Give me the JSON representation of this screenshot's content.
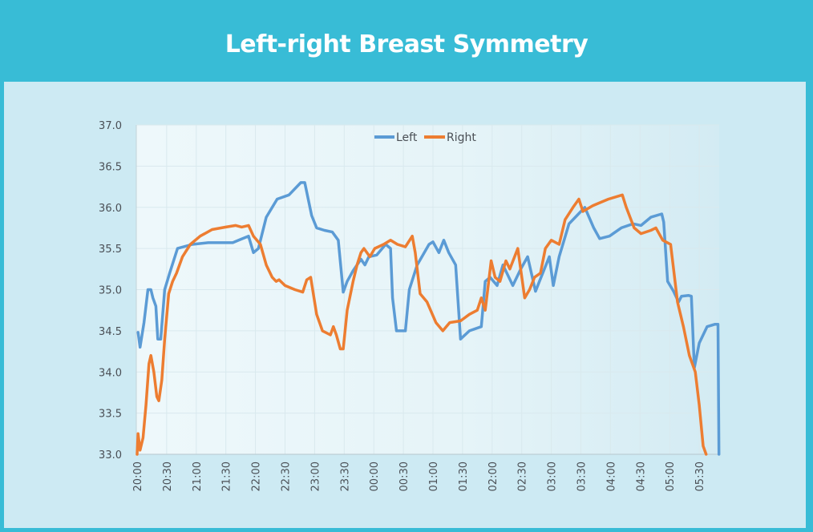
{
  "header": {
    "title": "Left-right Breast Symmetry"
  },
  "colors": {
    "frame": "#38bcd6",
    "panel": "#cdeaf3",
    "plot_bg": "#eaf6f9",
    "grid": "#d9e9ee",
    "left": "#5b9bd5",
    "right": "#ed7d31"
  },
  "chart_data": {
    "type": "line",
    "title": "Left-right Breast Symmetry",
    "xlabel": "",
    "ylabel": "",
    "x_unit": "minutes since 20:00",
    "xlim": [
      0,
      590
    ],
    "ylim": [
      33.0,
      37.0
    ],
    "y_ticks": [
      "33.0",
      "33.5",
      "34.0",
      "34.5",
      "35.0",
      "35.5",
      "36.0",
      "36.5",
      "37.0"
    ],
    "x_ticks": [
      "20:00",
      "20:30",
      "21:00",
      "21:30",
      "22:00",
      "22:30",
      "23:00",
      "23:30",
      "00:00",
      "00:30",
      "01:00",
      "01:30",
      "02:00",
      "02:30",
      "03:00",
      "03:30",
      "04:00",
      "04:30",
      "05:00",
      "05:30"
    ],
    "grid": true,
    "legend": {
      "position": "top-center",
      "entries": [
        "Left",
        "Right"
      ]
    },
    "series": [
      {
        "name": "Left",
        "color": "#5b9bd5",
        "points": [
          [
            1,
            34.48
          ],
          [
            3,
            34.3
          ],
          [
            7,
            34.6
          ],
          [
            11,
            35.0
          ],
          [
            14,
            35.0
          ],
          [
            16,
            34.9
          ],
          [
            19,
            34.8
          ],
          [
            21,
            34.4
          ],
          [
            24,
            34.4
          ],
          [
            28,
            35.0
          ],
          [
            33,
            35.2
          ],
          [
            41,
            35.5
          ],
          [
            56,
            35.55
          ],
          [
            72,
            35.57
          ],
          [
            97,
            35.57
          ],
          [
            103,
            35.6
          ],
          [
            113,
            35.65
          ],
          [
            118,
            35.45
          ],
          [
            123,
            35.5
          ],
          [
            131,
            35.88
          ],
          [
            142,
            36.1
          ],
          [
            154,
            36.15
          ],
          [
            166,
            36.3
          ],
          [
            170,
            36.3
          ],
          [
            177,
            35.9
          ],
          [
            182,
            35.75
          ],
          [
            190,
            35.72
          ],
          [
            198,
            35.7
          ],
          [
            204,
            35.6
          ],
          [
            209,
            34.97
          ],
          [
            213,
            35.1
          ],
          [
            219,
            35.23
          ],
          [
            227,
            35.37
          ],
          [
            231,
            35.3
          ],
          [
            235,
            35.4
          ],
          [
            243,
            35.42
          ],
          [
            252,
            35.55
          ],
          [
            257,
            35.5
          ],
          [
            259,
            34.9
          ],
          [
            263,
            34.5
          ],
          [
            272,
            34.5
          ],
          [
            276,
            35.0
          ],
          [
            284,
            35.3
          ],
          [
            296,
            35.55
          ],
          [
            300,
            35.58
          ],
          [
            306,
            35.45
          ],
          [
            311,
            35.6
          ],
          [
            316,
            35.45
          ],
          [
            323,
            35.3
          ],
          [
            328,
            34.4
          ],
          [
            337,
            34.5
          ],
          [
            349,
            34.55
          ],
          [
            353,
            35.1
          ],
          [
            358,
            35.15
          ],
          [
            365,
            35.05
          ],
          [
            371,
            35.3
          ],
          [
            381,
            35.05
          ],
          [
            389,
            35.25
          ],
          [
            396,
            35.4
          ],
          [
            404,
            34.98
          ],
          [
            408,
            35.1
          ],
          [
            418,
            35.4
          ],
          [
            422,
            35.05
          ],
          [
            428,
            35.4
          ],
          [
            438,
            35.8
          ],
          [
            446,
            35.9
          ],
          [
            454,
            36.0
          ],
          [
            463,
            35.75
          ],
          [
            469,
            35.62
          ],
          [
            479,
            35.65
          ],
          [
            491,
            35.75
          ],
          [
            503,
            35.8
          ],
          [
            511,
            35.78
          ],
          [
            521,
            35.88
          ],
          [
            532,
            35.92
          ],
          [
            534,
            35.82
          ],
          [
            538,
            35.1
          ],
          [
            544,
            34.98
          ],
          [
            549,
            34.85
          ],
          [
            552,
            34.92
          ],
          [
            559,
            34.93
          ],
          [
            562,
            34.92
          ],
          [
            565,
            34.05
          ],
          [
            570,
            34.35
          ],
          [
            578,
            34.55
          ],
          [
            586,
            34.58
          ],
          [
            589,
            34.58
          ],
          [
            590,
            33.0
          ]
        ]
      },
      {
        "name": "Right",
        "color": "#ed7d31",
        "points": [
          [
            0,
            33.0
          ],
          [
            1,
            33.25
          ],
          [
            3,
            33.05
          ],
          [
            6,
            33.2
          ],
          [
            9,
            33.6
          ],
          [
            12,
            34.1
          ],
          [
            14,
            34.2
          ],
          [
            17,
            34.0
          ],
          [
            20,
            33.7
          ],
          [
            22,
            33.65
          ],
          [
            25,
            33.9
          ],
          [
            28,
            34.4
          ],
          [
            32,
            34.95
          ],
          [
            36,
            35.1
          ],
          [
            40,
            35.2
          ],
          [
            46,
            35.4
          ],
          [
            54,
            35.55
          ],
          [
            64,
            35.65
          ],
          [
            76,
            35.73
          ],
          [
            90,
            35.76
          ],
          [
            100,
            35.78
          ],
          [
            106,
            35.76
          ],
          [
            113,
            35.78
          ],
          [
            118,
            35.65
          ],
          [
            125,
            35.55
          ],
          [
            131,
            35.3
          ],
          [
            137,
            35.15
          ],
          [
            141,
            35.1
          ],
          [
            144,
            35.12
          ],
          [
            150,
            35.05
          ],
          [
            160,
            35.0
          ],
          [
            168,
            34.97
          ],
          [
            172,
            35.12
          ],
          [
            176,
            35.15
          ],
          [
            182,
            34.7
          ],
          [
            188,
            34.5
          ],
          [
            196,
            34.45
          ],
          [
            199,
            34.55
          ],
          [
            202,
            34.45
          ],
          [
            206,
            34.28
          ],
          [
            209,
            34.28
          ],
          [
            213,
            34.75
          ],
          [
            219,
            35.1
          ],
          [
            223,
            35.3
          ],
          [
            227,
            35.45
          ],
          [
            230,
            35.5
          ],
          [
            236,
            35.4
          ],
          [
            241,
            35.5
          ],
          [
            250,
            35.55
          ],
          [
            257,
            35.6
          ],
          [
            264,
            35.55
          ],
          [
            272,
            35.52
          ],
          [
            279,
            35.65
          ],
          [
            282,
            35.45
          ],
          [
            287,
            34.95
          ],
          [
            294,
            34.85
          ],
          [
            303,
            34.6
          ],
          [
            310,
            34.5
          ],
          [
            317,
            34.6
          ],
          [
            328,
            34.62
          ],
          [
            337,
            34.7
          ],
          [
            345,
            34.75
          ],
          [
            349,
            34.9
          ],
          [
            353,
            34.75
          ],
          [
            359,
            35.35
          ],
          [
            363,
            35.15
          ],
          [
            368,
            35.1
          ],
          [
            374,
            35.35
          ],
          [
            378,
            35.25
          ],
          [
            386,
            35.5
          ],
          [
            393,
            34.9
          ],
          [
            398,
            35.0
          ],
          [
            403,
            35.15
          ],
          [
            409,
            35.2
          ],
          [
            414,
            35.5
          ],
          [
            420,
            35.6
          ],
          [
            428,
            35.55
          ],
          [
            434,
            35.85
          ],
          [
            442,
            36.0
          ],
          [
            448,
            36.1
          ],
          [
            452,
            35.95
          ],
          [
            462,
            36.02
          ],
          [
            478,
            36.1
          ],
          [
            492,
            36.15
          ],
          [
            496,
            36.0
          ],
          [
            504,
            35.75
          ],
          [
            511,
            35.68
          ],
          [
            521,
            35.72
          ],
          [
            526,
            35.75
          ],
          [
            533,
            35.6
          ],
          [
            541,
            35.55
          ],
          [
            544,
            35.25
          ],
          [
            548,
            34.85
          ],
          [
            554,
            34.55
          ],
          [
            560,
            34.2
          ],
          [
            566,
            34.0
          ],
          [
            570,
            33.6
          ],
          [
            574,
            33.1
          ],
          [
            577,
            33.0
          ]
        ]
      }
    ]
  }
}
